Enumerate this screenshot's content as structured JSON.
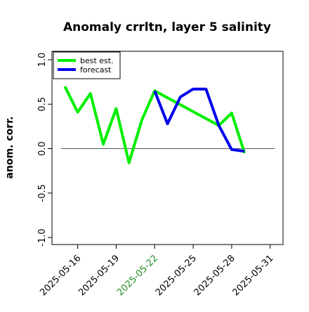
{
  "chart_data": {
    "type": "line",
    "title": "Anomaly crrltn, layer 5 salinity",
    "ylabel": "anom. corr.",
    "xlabel": "",
    "ylim": [
      -1.0,
      1.0
    ],
    "xlim": [
      "2025-05-14",
      "2025-06-01"
    ],
    "yticks": [
      -1.0,
      -0.5,
      0.0,
      0.5,
      1.0
    ],
    "ytick_labels": [
      "-1.0",
      "-0.5",
      "0.0",
      "0.5",
      "1.0"
    ],
    "xticks": [
      "2025-05-16",
      "2025-05-19",
      "2025-05-22",
      "2025-05-25",
      "2025-05-28",
      "2025-05-31"
    ],
    "xtick_labels": [
      "2025-05-16",
      "2025-05-19",
      "2025-05-22",
      "2025-05-25",
      "2025-05-28",
      "2025-05-31"
    ],
    "highlighted_xtick": "2025-05-22",
    "highlight_color": "#228B22",
    "reference_line_y": 0.0,
    "grid": false,
    "legend_position": "top-left",
    "series": [
      {
        "name": "best est.",
        "color": "#00ee00",
        "x": [
          "2025-05-15",
          "2025-05-16",
          "2025-05-17",
          "2025-05-18",
          "2025-05-19",
          "2025-05-20",
          "2025-05-21",
          "2025-05-22",
          "2025-05-27",
          "2025-05-28",
          "2025-05-29"
        ],
        "y": [
          0.7,
          0.41,
          0.62,
          0.05,
          0.45,
          -0.16,
          0.32,
          0.65,
          0.26,
          0.4,
          -0.05
        ]
      },
      {
        "name": "forecast",
        "color": "#0000ee",
        "x": [
          "2025-05-22",
          "2025-05-23",
          "2025-05-24",
          "2025-05-25",
          "2025-05-26",
          "2025-05-27",
          "2025-05-28",
          "2025-05-29"
        ],
        "y": [
          0.65,
          0.28,
          0.58,
          0.67,
          0.67,
          0.26,
          -0.01,
          -0.03
        ]
      }
    ]
  }
}
